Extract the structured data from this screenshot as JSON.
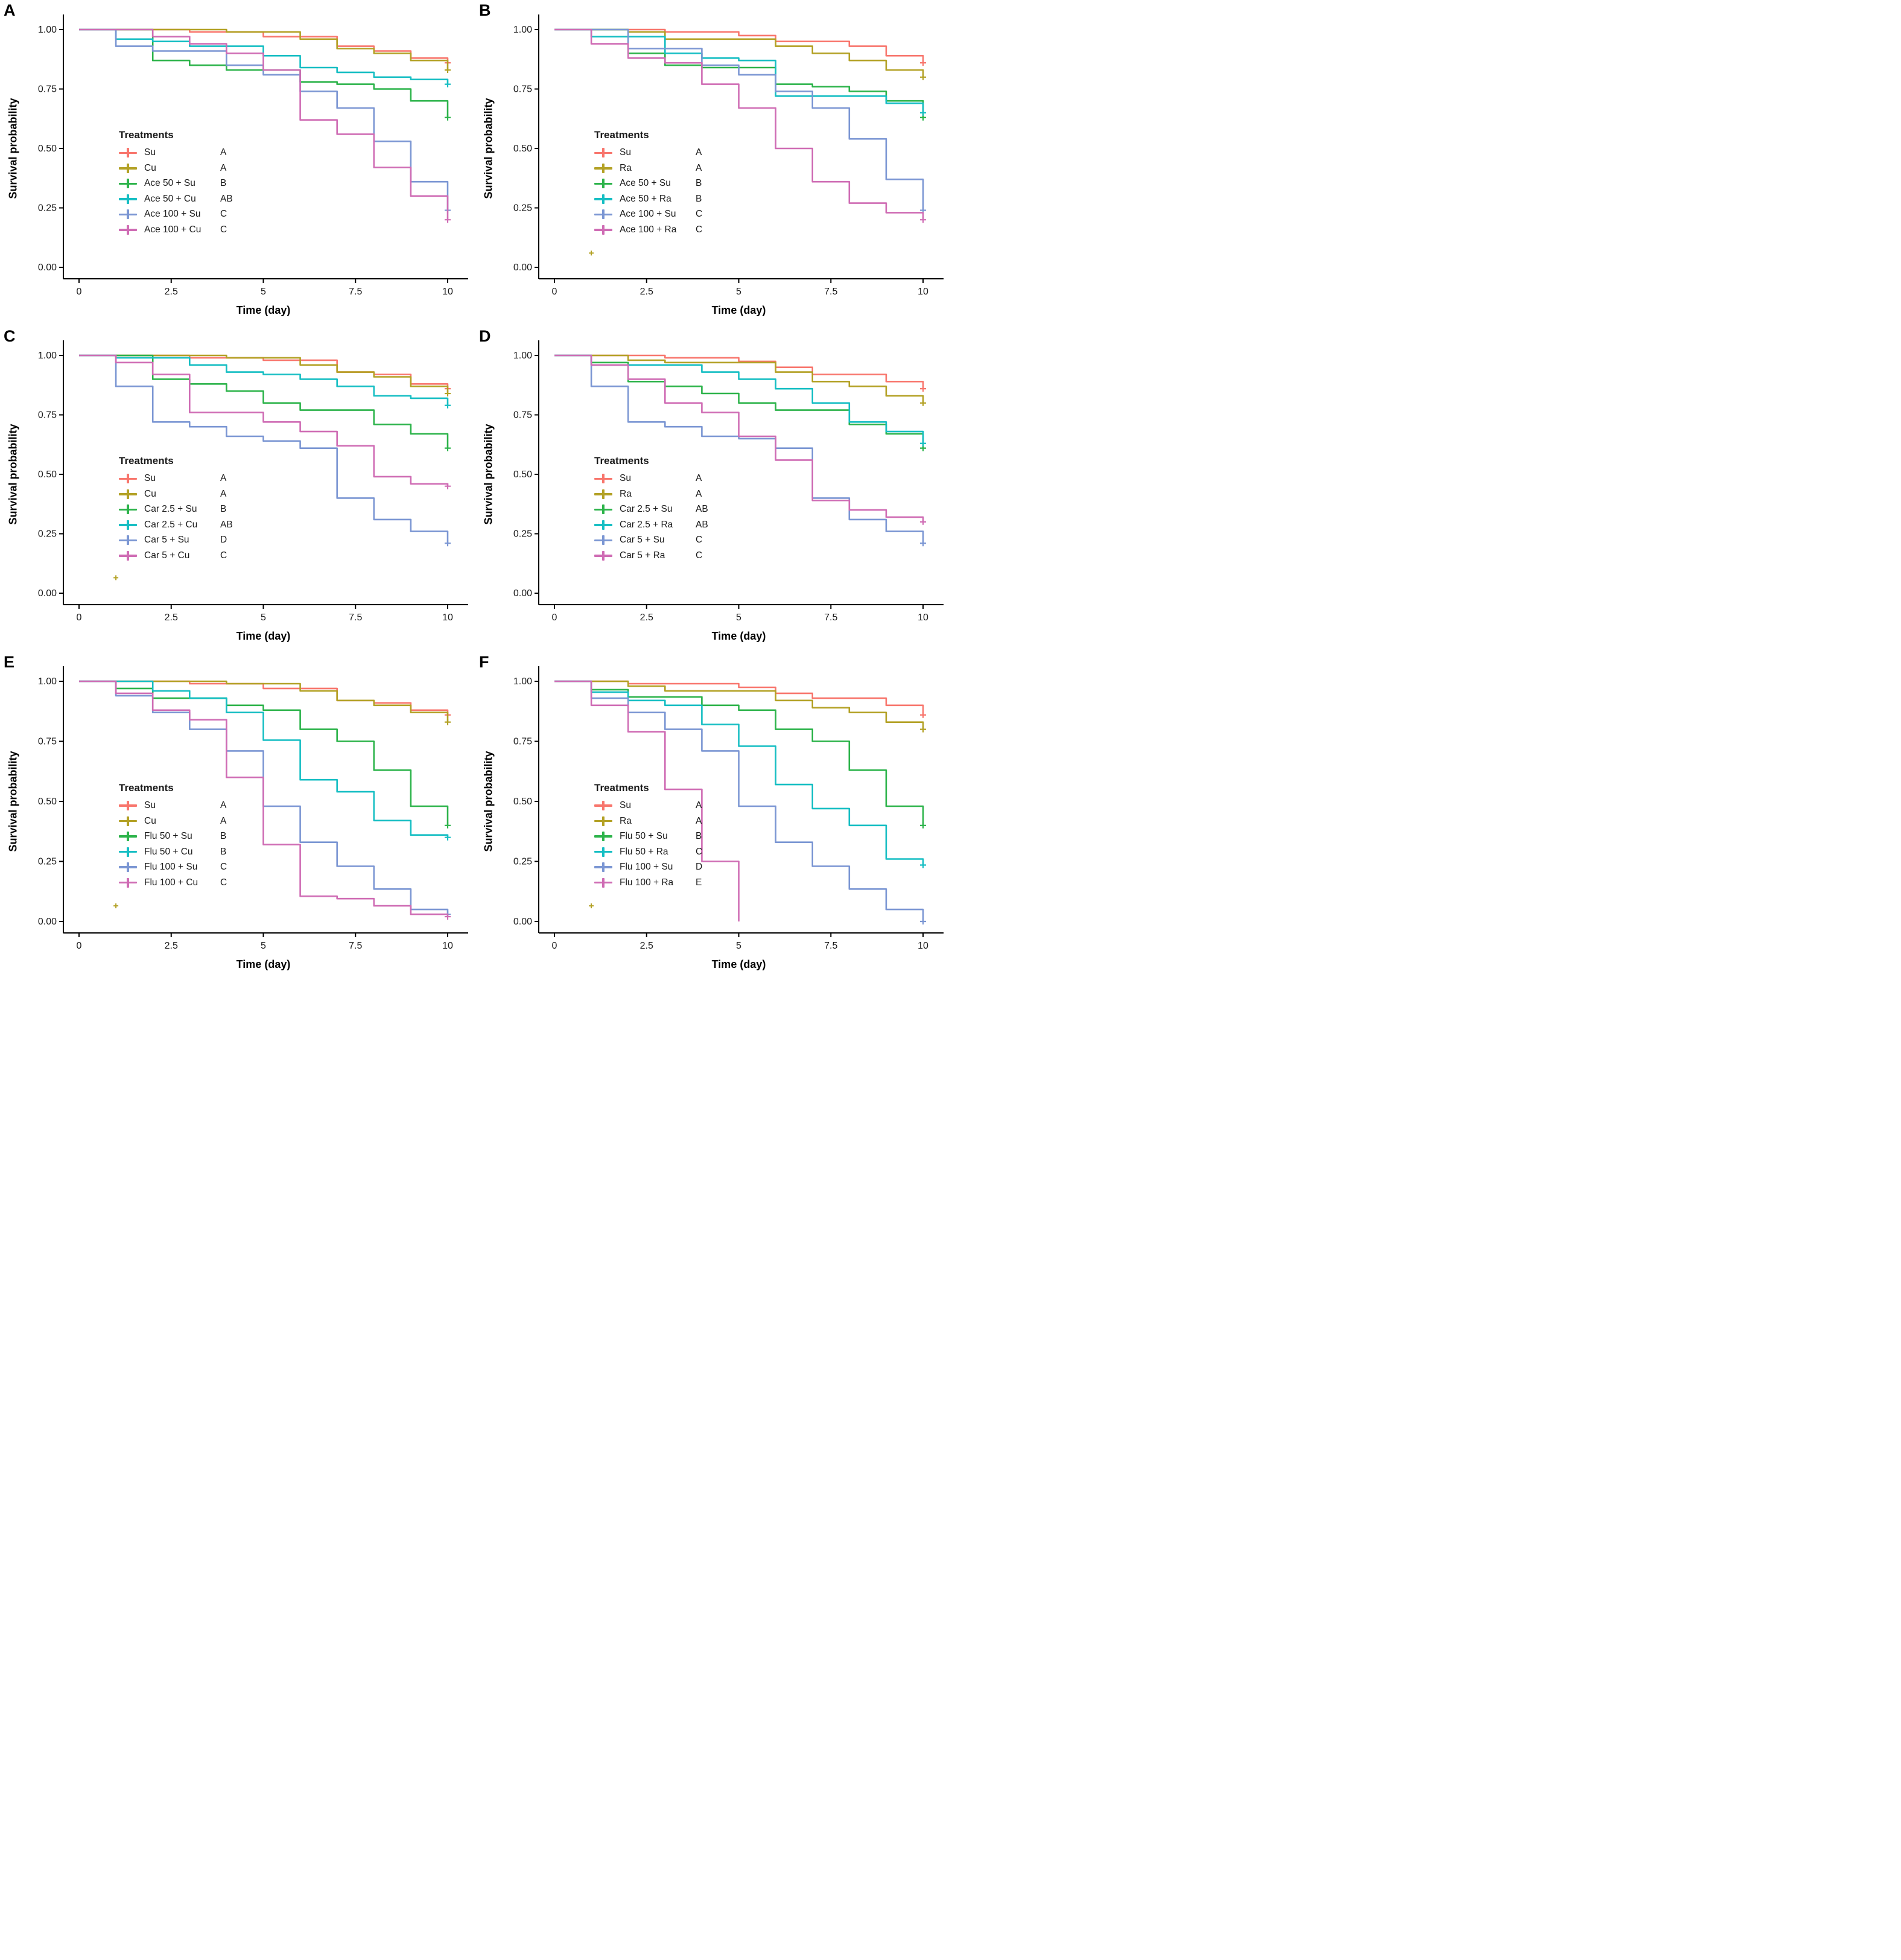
{
  "figure": {
    "type": "kaplan-meier-survival-grid",
    "columns": 2,
    "rows": 3,
    "background": "#ffffff"
  },
  "palette": {
    "salmon": "#F8766D",
    "gold": "#B3A125",
    "green": "#2CB34A",
    "cyan": "#16BEC3",
    "blue": "#7B96D3",
    "pink": "#CF6CB4"
  },
  "chart_data": [
    {
      "panel": "A",
      "type": "line",
      "subtype": "step-survival",
      "xlabel": "Time (day)",
      "ylabel": "Survival probability",
      "xlim": [
        0,
        10
      ],
      "ylim": [
        0,
        1
      ],
      "x_ticks": [
        0,
        2.5,
        5,
        7.5,
        10
      ],
      "x_tick_labels": [
        "0",
        "2.5",
        "5",
        "7.5",
        "10"
      ],
      "y_ticks": [
        0,
        0.25,
        0.5,
        0.75,
        1
      ],
      "y_tick_labels": [
        "0.00",
        "0.25",
        "0.50",
        "0.75",
        "1.00"
      ],
      "legend_title": "Treatments",
      "days": [
        0,
        1,
        2,
        3,
        4,
        5,
        6,
        7,
        8,
        9,
        10
      ],
      "series": [
        {
          "name": "Su",
          "group": "A",
          "color": "#F8766D",
          "end_day": 10,
          "values": [
            1,
            1,
            1,
            0.99,
            0.99,
            0.97,
            0.97,
            0.93,
            0.91,
            0.88,
            0.86
          ]
        },
        {
          "name": "Cu",
          "group": "A",
          "color": "#B3A125",
          "end_day": 10,
          "values": [
            1,
            1,
            1,
            1,
            0.99,
            0.99,
            0.96,
            0.92,
            0.9,
            0.87,
            0.83
          ]
        },
        {
          "name": "Ace 50 + Su",
          "group": "B",
          "color": "#2CB34A",
          "end_day": 10,
          "values": [
            1,
            1,
            0.87,
            0.85,
            0.83,
            0.83,
            0.78,
            0.77,
            0.75,
            0.7,
            0.63
          ]
        },
        {
          "name": "Ace 50 + Cu",
          "group": "AB",
          "color": "#16BEC3",
          "end_day": 10,
          "values": [
            1,
            0.96,
            0.95,
            0.93,
            0.93,
            0.89,
            0.84,
            0.82,
            0.8,
            0.79,
            0.77
          ]
        },
        {
          "name": "Ace 100 + Su",
          "group": "C",
          "color": "#7B96D3",
          "end_day": 10,
          "values": [
            1,
            0.93,
            0.91,
            0.91,
            0.85,
            0.81,
            0.74,
            0.67,
            0.53,
            0.36,
            0.24
          ]
        },
        {
          "name": "Ace 100 + Cu",
          "group": "C",
          "color": "#CF6CB4",
          "end_day": 10,
          "values": [
            1,
            1,
            0.97,
            0.94,
            0.9,
            0.83,
            0.62,
            0.56,
            0.42,
            0.3,
            0.2
          ]
        }
      ],
      "stray_censor": null
    },
    {
      "panel": "B",
      "type": "line",
      "subtype": "step-survival",
      "xlabel": "Time (day)",
      "ylabel": "Survival probability",
      "xlim": [
        0,
        10
      ],
      "ylim": [
        0,
        1
      ],
      "x_ticks": [
        0,
        2.5,
        5,
        7.5,
        10
      ],
      "x_tick_labels": [
        "0",
        "2.5",
        "5",
        "7.5",
        "10"
      ],
      "y_ticks": [
        0,
        0.25,
        0.5,
        0.75,
        1
      ],
      "y_tick_labels": [
        "0.00",
        "0.25",
        "0.50",
        "0.75",
        "1.00"
      ],
      "legend_title": "Treatments",
      "days": [
        0,
        1,
        2,
        3,
        4,
        5,
        6,
        7,
        8,
        9,
        10
      ],
      "series": [
        {
          "name": "Su",
          "group": "A",
          "color": "#F8766D",
          "end_day": 10,
          "values": [
            1,
            1,
            1,
            0.99,
            0.99,
            0.975,
            0.95,
            0.95,
            0.93,
            0.89,
            0.86
          ]
        },
        {
          "name": "Ra",
          "group": "A",
          "color": "#B3A125",
          "end_day": 10,
          "values": [
            1,
            1,
            0.99,
            0.96,
            0.96,
            0.96,
            0.93,
            0.9,
            0.87,
            0.83,
            0.8
          ]
        },
        {
          "name": "Ace 50 + Su",
          "group": "B",
          "color": "#2CB34A",
          "end_day": 10,
          "values": [
            1,
            1,
            0.9,
            0.85,
            0.84,
            0.84,
            0.77,
            0.76,
            0.74,
            0.7,
            0.63
          ]
        },
        {
          "name": "Ace 50 + Ra",
          "group": "B",
          "color": "#16BEC3",
          "end_day": 10,
          "values": [
            1,
            0.97,
            0.97,
            0.9,
            0.88,
            0.87,
            0.72,
            0.72,
            0.72,
            0.69,
            0.65
          ]
        },
        {
          "name": "Ace 100 + Su",
          "group": "C",
          "color": "#7B96D3",
          "end_day": 10,
          "values": [
            1,
            1,
            0.92,
            0.92,
            0.85,
            0.81,
            0.74,
            0.67,
            0.54,
            0.37,
            0.24
          ]
        },
        {
          "name": "Ace 100 + Ra",
          "group": "C",
          "color": "#CF6CB4",
          "end_day": 10,
          "values": [
            1,
            0.94,
            0.88,
            0.86,
            0.77,
            0.67,
            0.5,
            0.36,
            0.27,
            0.23,
            0.2
          ]
        }
      ],
      "stray_censor": {
        "x": 1,
        "y": 0.06,
        "color": "#B3A125"
      }
    },
    {
      "panel": "C",
      "type": "line",
      "subtype": "step-survival",
      "xlabel": "Time (day)",
      "ylabel": "Survival probability",
      "xlim": [
        0,
        10
      ],
      "ylim": [
        0,
        1
      ],
      "x_ticks": [
        0,
        2.5,
        5,
        7.5,
        10
      ],
      "x_tick_labels": [
        "0",
        "2.5",
        "5",
        "7.5",
        "10"
      ],
      "y_ticks": [
        0,
        0.25,
        0.5,
        0.75,
        1
      ],
      "y_tick_labels": [
        "0.00",
        "0.25",
        "0.50",
        "0.75",
        "1.00"
      ],
      "legend_title": "Treatments",
      "days": [
        0,
        1,
        2,
        3,
        4,
        5,
        6,
        7,
        8,
        9,
        10
      ],
      "series": [
        {
          "name": "Su",
          "group": "A",
          "color": "#F8766D",
          "end_day": 10,
          "values": [
            1,
            1,
            1,
            0.99,
            0.99,
            0.98,
            0.98,
            0.93,
            0.92,
            0.88,
            0.86
          ]
        },
        {
          "name": "Cu",
          "group": "A",
          "color": "#B3A125",
          "end_day": 10,
          "values": [
            1,
            1,
            1,
            1,
            0.99,
            0.99,
            0.96,
            0.93,
            0.91,
            0.87,
            0.84
          ]
        },
        {
          "name": "Car 2.5 + Su",
          "group": "B",
          "color": "#2CB34A",
          "end_day": 10,
          "values": [
            1,
            1,
            0.9,
            0.88,
            0.85,
            0.8,
            0.77,
            0.77,
            0.71,
            0.67,
            0.61
          ]
        },
        {
          "name": "Car 2.5 + Cu",
          "group": "AB",
          "color": "#16BEC3",
          "end_day": 10,
          "values": [
            1,
            0.99,
            0.99,
            0.96,
            0.93,
            0.92,
            0.9,
            0.87,
            0.83,
            0.82,
            0.79
          ]
        },
        {
          "name": "Car 5 + Su",
          "group": "D",
          "color": "#7B96D3",
          "end_day": 10,
          "values": [
            1,
            0.87,
            0.72,
            0.7,
            0.66,
            0.64,
            0.61,
            0.4,
            0.31,
            0.26,
            0.21
          ]
        },
        {
          "name": "Car 5 + Cu",
          "group": "C",
          "color": "#CF6CB4",
          "end_day": 10,
          "values": [
            1,
            0.97,
            0.92,
            0.76,
            0.76,
            0.72,
            0.68,
            0.62,
            0.49,
            0.46,
            0.45
          ]
        }
      ],
      "stray_censor": {
        "x": 1,
        "y": 0.065,
        "color": "#B3A125"
      }
    },
    {
      "panel": "D",
      "type": "line",
      "subtype": "step-survival",
      "xlabel": "Time (day)",
      "ylabel": "Survival probability",
      "xlim": [
        0,
        10
      ],
      "ylim": [
        0,
        1
      ],
      "x_ticks": [
        0,
        2.5,
        5,
        7.5,
        10
      ],
      "x_tick_labels": [
        "0",
        "2.5",
        "5",
        "7.5",
        "10"
      ],
      "y_ticks": [
        0,
        0.25,
        0.5,
        0.75,
        1
      ],
      "y_tick_labels": [
        "0.00",
        "0.25",
        "0.50",
        "0.75",
        "1.00"
      ],
      "legend_title": "Treatments",
      "days": [
        0,
        1,
        2,
        3,
        4,
        5,
        6,
        7,
        8,
        9,
        10
      ],
      "series": [
        {
          "name": "Su",
          "group": "A",
          "color": "#F8766D",
          "end_day": 10,
          "values": [
            1,
            1,
            1,
            0.99,
            0.99,
            0.975,
            0.95,
            0.92,
            0.92,
            0.89,
            0.86
          ]
        },
        {
          "name": "Ra",
          "group": "A",
          "color": "#B3A125",
          "end_day": 10,
          "values": [
            1,
            1,
            0.98,
            0.97,
            0.97,
            0.97,
            0.93,
            0.89,
            0.87,
            0.83,
            0.8
          ]
        },
        {
          "name": "Car 2.5 + Su",
          "group": "AB",
          "color": "#2CB34A",
          "end_day": 10,
          "values": [
            1,
            0.97,
            0.89,
            0.87,
            0.84,
            0.8,
            0.77,
            0.77,
            0.71,
            0.67,
            0.61
          ]
        },
        {
          "name": "Car 2.5 + Ra",
          "group": "AB",
          "color": "#16BEC3",
          "end_day": 10,
          "values": [
            1,
            0.96,
            0.96,
            0.96,
            0.93,
            0.9,
            0.86,
            0.8,
            0.72,
            0.68,
            0.63
          ]
        },
        {
          "name": "Car 5 + Su",
          "group": "C",
          "color": "#7B96D3",
          "end_day": 10,
          "values": [
            1,
            0.87,
            0.72,
            0.7,
            0.66,
            0.65,
            0.61,
            0.4,
            0.31,
            0.26,
            0.21
          ]
        },
        {
          "name": "Car 5 + Ra",
          "group": "C",
          "color": "#CF6CB4",
          "end_day": 10,
          "values": [
            1,
            0.96,
            0.9,
            0.8,
            0.76,
            0.66,
            0.56,
            0.39,
            0.35,
            0.32,
            0.3
          ]
        }
      ],
      "stray_censor": null
    },
    {
      "panel": "E",
      "type": "line",
      "subtype": "step-survival",
      "xlabel": "Time (day)",
      "ylabel": "Survival probability",
      "xlim": [
        0,
        10
      ],
      "ylim": [
        0,
        1
      ],
      "x_ticks": [
        0,
        2.5,
        5,
        7.5,
        10
      ],
      "x_tick_labels": [
        "0",
        "2.5",
        "5",
        "7.5",
        "10"
      ],
      "y_ticks": [
        0,
        0.25,
        0.5,
        0.75,
        1
      ],
      "y_tick_labels": [
        "0.00",
        "0.25",
        "0.50",
        "0.75",
        "1.00"
      ],
      "legend_title": "Treatments",
      "days": [
        0,
        1,
        2,
        3,
        4,
        5,
        6,
        7,
        8,
        9,
        10
      ],
      "series": [
        {
          "name": "Su",
          "group": "A",
          "color": "#F8766D",
          "end_day": 10,
          "values": [
            1,
            1,
            1,
            0.99,
            0.99,
            0.97,
            0.97,
            0.92,
            0.91,
            0.88,
            0.86
          ]
        },
        {
          "name": "Cu",
          "group": "A",
          "color": "#B3A125",
          "end_day": 10,
          "values": [
            1,
            1,
            1,
            1,
            0.99,
            0.99,
            0.96,
            0.92,
            0.9,
            0.87,
            0.83
          ]
        },
        {
          "name": "Flu 50 + Su",
          "group": "B",
          "color": "#2CB34A",
          "end_day": 10,
          "values": [
            1,
            0.97,
            0.93,
            0.93,
            0.9,
            0.88,
            0.8,
            0.75,
            0.63,
            0.48,
            0.4
          ]
        },
        {
          "name": "Flu 50 + Cu",
          "group": "B",
          "color": "#16BEC3",
          "end_day": 10,
          "values": [
            1,
            1,
            0.96,
            0.93,
            0.87,
            0.755,
            0.59,
            0.54,
            0.42,
            0.36,
            0.35
          ]
        },
        {
          "name": "Flu 100 + Su",
          "group": "C",
          "color": "#7B96D3",
          "end_day": 10,
          "values": [
            1,
            0.94,
            0.87,
            0.8,
            0.71,
            0.48,
            0.33,
            0.23,
            0.135,
            0.05,
            0.03
          ]
        },
        {
          "name": "Flu 100 + Cu",
          "group": "C",
          "color": "#CF6CB4",
          "end_day": 10,
          "values": [
            1,
            0.95,
            0.88,
            0.84,
            0.6,
            0.32,
            0.105,
            0.095,
            0.065,
            0.03,
            0.02
          ]
        }
      ],
      "stray_censor": {
        "x": 1,
        "y": 0.065,
        "color": "#B3A125"
      }
    },
    {
      "panel": "F",
      "type": "line",
      "subtype": "step-survival",
      "xlabel": "Time (day)",
      "ylabel": "Survival probability",
      "xlim": [
        0,
        10
      ],
      "ylim": [
        0,
        1
      ],
      "x_ticks": [
        0,
        2.5,
        5,
        7.5,
        10
      ],
      "x_tick_labels": [
        "0",
        "2.5",
        "5",
        "7.5",
        "10"
      ],
      "y_ticks": [
        0,
        0.25,
        0.5,
        0.75,
        1
      ],
      "y_tick_labels": [
        "0.00",
        "0.25",
        "0.50",
        "0.75",
        "1.00"
      ],
      "legend_title": "Treatments",
      "days": [
        0,
        1,
        2,
        3,
        4,
        5,
        6,
        7,
        8,
        9,
        10
      ],
      "series": [
        {
          "name": "Su",
          "group": "A",
          "color": "#F8766D",
          "end_day": 10,
          "values": [
            1,
            1,
            0.99,
            0.99,
            0.99,
            0.975,
            0.95,
            0.93,
            0.93,
            0.9,
            0.86
          ]
        },
        {
          "name": "Ra",
          "group": "A",
          "color": "#B3A125",
          "end_day": 10,
          "values": [
            1,
            1,
            0.98,
            0.96,
            0.96,
            0.96,
            0.92,
            0.89,
            0.87,
            0.83,
            0.8
          ]
        },
        {
          "name": "Flu 50 + Su",
          "group": "B",
          "color": "#2CB34A",
          "end_day": 10,
          "values": [
            1,
            0.965,
            0.935,
            0.935,
            0.9,
            0.88,
            0.8,
            0.75,
            0.63,
            0.48,
            0.4
          ]
        },
        {
          "name": "Flu 50 + Ra",
          "group": "C",
          "color": "#16BEC3",
          "end_day": 10,
          "values": [
            1,
            0.955,
            0.92,
            0.9,
            0.82,
            0.73,
            0.57,
            0.47,
            0.4,
            0.26,
            0.235
          ]
        },
        {
          "name": "Flu 100 + Su",
          "group": "D",
          "color": "#7B96D3",
          "end_day": 10,
          "values": [
            1,
            0.93,
            0.87,
            0.8,
            0.71,
            0.48,
            0.33,
            0.23,
            0.135,
            0.05,
            0.0
          ]
        },
        {
          "name": "Flu 100 + Ra",
          "group": "E",
          "color": "#CF6CB4",
          "end_day": 5,
          "values": [
            1,
            0.9,
            0.79,
            0.55,
            0.25,
            0,
            0,
            0,
            0,
            0,
            0
          ]
        }
      ],
      "stray_censor": {
        "x": 1,
        "y": 0.065,
        "color": "#B3A125"
      }
    }
  ]
}
